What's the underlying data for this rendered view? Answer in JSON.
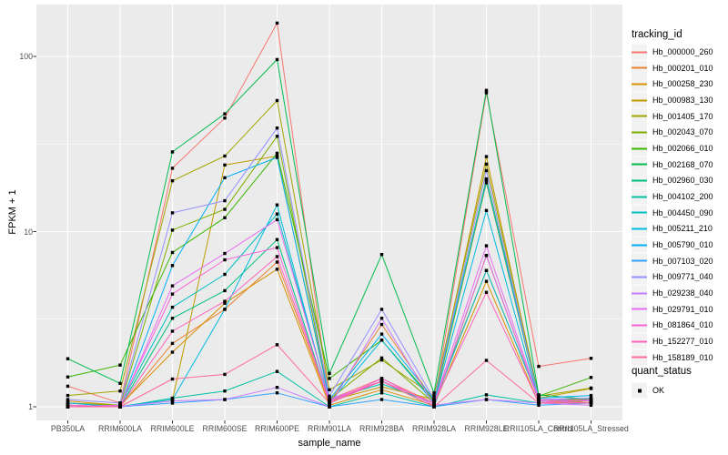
{
  "figure": {
    "y_axis_title": "FPKM + 1",
    "x_axis_title": "sample_name",
    "legend": {
      "tracking_title": "tracking_id",
      "quant_title": "quant_status",
      "quant_ok_label": "OK"
    },
    "colors": {
      "panel_bg": "#EBEBEB",
      "grid_major": "#FFFFFF",
      "grid_minor": "#FFFFFF",
      "tick_mark": "#333333",
      "tick_text": "#4D4D4D",
      "title_text": "#000000",
      "legend_key_bg": "#F2F2F2",
      "point": "#000000"
    }
  },
  "chart_data": {
    "type": "line",
    "title": "",
    "xlabel": "sample_name",
    "ylabel": "FPKM + 1",
    "x_scale": "categorical",
    "y_scale": "log10",
    "ylim": [
      1,
      200
    ],
    "yticks": [
      1,
      10,
      100
    ],
    "grid": true,
    "legend_position": "right",
    "legend_title": "tracking_id",
    "point_shape": "filled-square",
    "point_legend": {
      "title": "quant_status",
      "label": "OK"
    },
    "categories": [
      "PB350LA",
      "RRIM600LA",
      "RRIM600LE",
      "RRIM600SE",
      "RRIM600PE",
      "RRIM901LA",
      "RRIM928BA",
      "RRIM928LA",
      "RRIM928LE",
      "RRII105LA_Control",
      "RRII105LA_Stressed"
    ],
    "series": [
      {
        "name": "Hb_000000_260",
        "color": "#F8766D",
        "values": [
          1.31,
          1.05,
          23.0,
          44.5,
          155,
          1.1,
          1.45,
          1.05,
          62,
          1.7,
          1.89
        ]
      },
      {
        "name": "Hb_000201_010",
        "color": "#EA8331",
        "values": [
          1.05,
          1.0,
          2.3,
          3.6,
          6.7,
          1.05,
          2.95,
          1.08,
          6.0,
          1.1,
          1.05
        ]
      },
      {
        "name": "Hb_000258_230",
        "color": "#D89000",
        "values": [
          1.08,
          1.02,
          2.05,
          3.9,
          6.1,
          1.02,
          1.25,
          1.02,
          5.2,
          1.05,
          1.08
        ]
      },
      {
        "name": "Hb_000983_130",
        "color": "#C09B00",
        "values": [
          1.02,
          1.0,
          1.1,
          24.0,
          27.0,
          1.08,
          1.3,
          1.1,
          26.8,
          1.12,
          1.27
        ]
      },
      {
        "name": "Hb_001405_170",
        "color": "#A3A500",
        "values": [
          1.16,
          1.23,
          19.5,
          27.0,
          56,
          1.25,
          1.85,
          1.15,
          24.3,
          1.15,
          1.28
        ]
      },
      {
        "name": "Hb_002043_070",
        "color": "#7CAE00",
        "values": [
          1.05,
          1.02,
          10.2,
          13.4,
          35,
          1.1,
          1.9,
          1.05,
          19.0,
          1.1,
          1.1
        ]
      },
      {
        "name": "Hb_002066_010",
        "color": "#39B600",
        "values": [
          1.48,
          1.73,
          7.6,
          12.0,
          28,
          1.45,
          2.4,
          1.08,
          20.0,
          1.15,
          1.47
        ]
      },
      {
        "name": "Hb_002168_070",
        "color": "#00BB4E",
        "values": [
          1.88,
          1.36,
          28.5,
          47.0,
          96,
          1.55,
          7.4,
          1.2,
          64,
          1.17,
          1.1
        ]
      },
      {
        "name": "Hb_002960_030",
        "color": "#00BF7D",
        "values": [
          1.0,
          1.0,
          3.2,
          4.6,
          9.0,
          1.05,
          1.4,
          1.0,
          7.3,
          1.08,
          1.05
        ]
      },
      {
        "name": "Hb_004102_200",
        "color": "#00C1A3",
        "values": [
          1.02,
          1.0,
          1.12,
          1.23,
          1.59,
          1.0,
          1.2,
          1.0,
          1.17,
          1.05,
          1.1
        ]
      },
      {
        "name": "Hb_004450_090",
        "color": "#00BFC4",
        "values": [
          1.0,
          1.02,
          3.7,
          5.7,
          12.6,
          1.1,
          1.35,
          1.05,
          6.0,
          1.1,
          1.08
        ]
      },
      {
        "name": "Hb_005211_210",
        "color": "#00BAE0",
        "values": [
          1.0,
          1.0,
          1.1,
          3.6,
          14.2,
          1.05,
          2.4,
          1.05,
          13.2,
          1.08,
          1.05
        ]
      },
      {
        "name": "Hb_005790_010",
        "color": "#00B0F6",
        "values": [
          1.05,
          1.0,
          6.4,
          20.3,
          26.5,
          1.1,
          2.6,
          1.1,
          19.5,
          1.12,
          1.16
        ]
      },
      {
        "name": "Hb_007103_020",
        "color": "#35A2FF",
        "values": [
          1.0,
          1.0,
          1.05,
          1.1,
          1.2,
          1.0,
          1.1,
          1.0,
          1.1,
          1.02,
          1.05
        ]
      },
      {
        "name": "Hb_009771_040",
        "color": "#9590FF",
        "values": [
          1.1,
          1.05,
          12.8,
          15.0,
          39,
          1.15,
          3.6,
          1.1,
          22.3,
          1.1,
          1.12
        ]
      },
      {
        "name": "Hb_029238_040",
        "color": "#C77CFF",
        "values": [
          1.0,
          1.0,
          1.08,
          1.1,
          1.29,
          1.0,
          3.2,
          1.02,
          1.1,
          1.05,
          1.02
        ]
      },
      {
        "name": "Hb_029791_010",
        "color": "#E76BF3",
        "values": [
          1.02,
          1.0,
          4.9,
          7.5,
          11.7,
          1.1,
          1.4,
          1.05,
          8.3,
          1.1,
          1.08
        ]
      },
      {
        "name": "Hb_081864_010",
        "color": "#FA62DB",
        "values": [
          1.0,
          1.02,
          4.4,
          6.9,
          8.1,
          1.05,
          1.45,
          1.02,
          7.3,
          1.08,
          1.05
        ]
      },
      {
        "name": "Hb_152277_010",
        "color": "#FF62BC",
        "values": [
          1.02,
          1.0,
          2.7,
          4.0,
          7.2,
          1.08,
          1.4,
          1.05,
          4.5,
          1.05,
          1.1
        ]
      },
      {
        "name": "Hb_158189_010",
        "color": "#FF6A98",
        "values": [
          1.0,
          1.0,
          1.44,
          1.53,
          2.26,
          1.05,
          1.4,
          1.0,
          1.84,
          1.05,
          1.05
        ]
      }
    ]
  }
}
